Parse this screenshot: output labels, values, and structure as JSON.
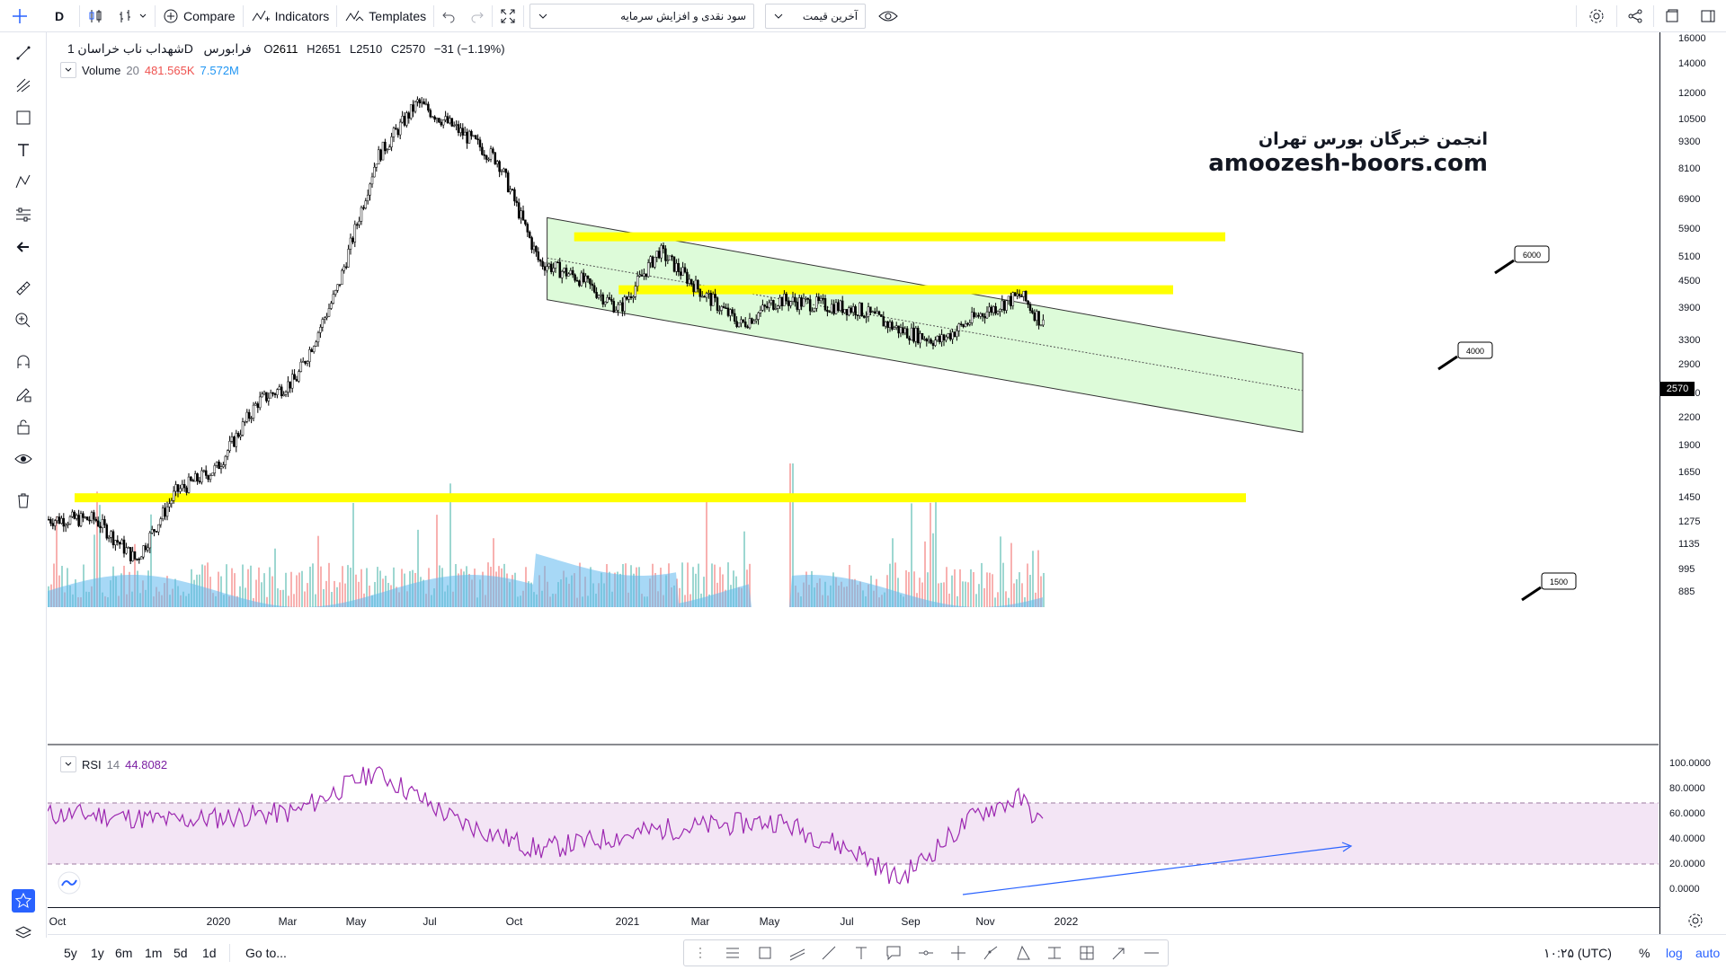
{
  "toolbar": {
    "interval": "D",
    "compare": "Compare",
    "indicators": "Indicators",
    "templates": "Templates",
    "symbol_select": "سود نقدی و افزایش سرمایه",
    "price_type_select": "آخرین قیمت"
  },
  "legend": {
    "symbol_name": "شهداب ناب خراسان",
    "interval": "1D",
    "exchange": "فرابورس",
    "open_label": "O",
    "open": "2611",
    "high_label": "H",
    "high": "2651",
    "low_label": "L",
    "low": "2510",
    "close_label": "C",
    "close": "2570",
    "change": "−31 (−1.19%)",
    "volume_name": "Volume",
    "volume_period": "20",
    "volume_value": "481.565K",
    "volume_ma": "7.572M",
    "rsi_name": "RSI",
    "rsi_period": "14",
    "rsi_value": "44.8082"
  },
  "watermark": {
    "line1": "انجمن خبرگان بورس تهران",
    "line2": "amoozesh-boors.com"
  },
  "annotations": [
    "6000",
    "4000",
    "1500"
  ],
  "price_scale": {
    "labels": [
      "16000",
      "14000",
      "12000",
      "10500",
      "9300",
      "8100",
      "6900",
      "5900",
      "5100",
      "4500",
      "3900",
      "3300",
      "2900",
      "2500",
      "2200",
      "1900",
      "1650",
      "1450",
      "1275",
      "1135",
      "995",
      "885"
    ],
    "current_price": "2570",
    "rsi_labels": [
      "100.0000",
      "80.0000",
      "60.0000",
      "40.0000",
      "20.0000",
      "0.0000"
    ]
  },
  "time_axis": {
    "labels": [
      "Oct",
      "2020",
      "Mar",
      "May",
      "Jul",
      "Oct",
      "2021",
      "Mar",
      "May",
      "Jul",
      "Sep",
      "Nov",
      "2022"
    ]
  },
  "bottom_bar": {
    "ranges": [
      "5y",
      "1y",
      "6m",
      "1m",
      "5d",
      "1d"
    ],
    "goto": "Go to...",
    "clock": "۱۰:۲۵ (UTC)",
    "percent": "%",
    "log": "log",
    "auto": "auto"
  },
  "colors": {
    "bull": "#26a69a",
    "bear": "#ef5350",
    "highlight": "#ffff00",
    "channel_fill": "#ddfbd9",
    "rsi_line": "#9c27b0",
    "rsi_band": "#f3e5f5",
    "volume_ma": "#5fb8ee",
    "trend_arrow": "#2962ff"
  },
  "chart_data": {
    "type": "candlestick",
    "instrument": "شهداب ناب خراسان",
    "interval": "1D",
    "x_range": [
      "2019-09",
      "2022-01"
    ],
    "y_scale": "log",
    "ohlc_last": {
      "open": 2611,
      "high": 2651,
      "low": 2510,
      "close": 2570
    },
    "approx_close_path": [
      {
        "x": "2019-10",
        "y": 1300
      },
      {
        "x": "2019-11",
        "y": 1050
      },
      {
        "x": "2019-12",
        "y": 1500
      },
      {
        "x": "2020-01",
        "y": 1700
      },
      {
        "x": "2020-02",
        "y": 2400
      },
      {
        "x": "2020-03",
        "y": 2700
      },
      {
        "x": "2020-04",
        "y": 4300
      },
      {
        "x": "2020-05",
        "y": 8600
      },
      {
        "x": "2020-06",
        "y": 11500
      },
      {
        "x": "2020-07",
        "y": 10000
      },
      {
        "x": "2020-08",
        "y": 8500
      },
      {
        "x": "2020-09",
        "y": 5000
      },
      {
        "x": "2020-10",
        "y": 4600
      },
      {
        "x": "2020-11",
        "y": 3900
      },
      {
        "x": "2020-12",
        "y": 5300
      },
      {
        "x": "2021-01",
        "y": 4300
      },
      {
        "x": "2021-02",
        "y": 3600
      },
      {
        "x": "2021-03",
        "y": 4100
      },
      {
        "x": "2021-04",
        "y": 4000
      },
      {
        "x": "2021-05",
        "y": 3900
      },
      {
        "x": "2021-06",
        "y": 3500
      },
      {
        "x": "2021-07",
        "y": 3300
      },
      {
        "x": "2021-08",
        "y": 3800
      },
      {
        "x": "2021-09",
        "y": 4200
      },
      {
        "x": "2021-10",
        "y": 3200
      },
      {
        "x": "2021-11",
        "y": 2800
      },
      {
        "x": "2021-12",
        "y": 2600
      },
      {
        "x": "2022-01",
        "y": 2570
      }
    ],
    "horizontal_levels": [
      6000,
      4000,
      1500
    ],
    "rsi_approx": [
      {
        "x": "2019-10",
        "y": 60
      },
      {
        "x": "2019-12",
        "y": 55
      },
      {
        "x": "2020-03",
        "y": 62
      },
      {
        "x": "2020-05",
        "y": 95
      },
      {
        "x": "2020-07",
        "y": 55
      },
      {
        "x": "2020-09",
        "y": 32
      },
      {
        "x": "2020-12",
        "y": 48
      },
      {
        "x": "2021-03",
        "y": 55
      },
      {
        "x": "2021-05",
        "y": 30
      },
      {
        "x": "2021-06",
        "y": 8
      },
      {
        "x": "2021-08",
        "y": 62
      },
      {
        "x": "2021-09",
        "y": 73
      },
      {
        "x": "2021-10",
        "y": 35
      },
      {
        "x": "2021-12",
        "y": 44
      },
      {
        "x": "2022-01",
        "y": 45
      }
    ],
    "rsi_range": [
      0,
      100
    ],
    "rsi_band": [
      30,
      70
    ]
  }
}
